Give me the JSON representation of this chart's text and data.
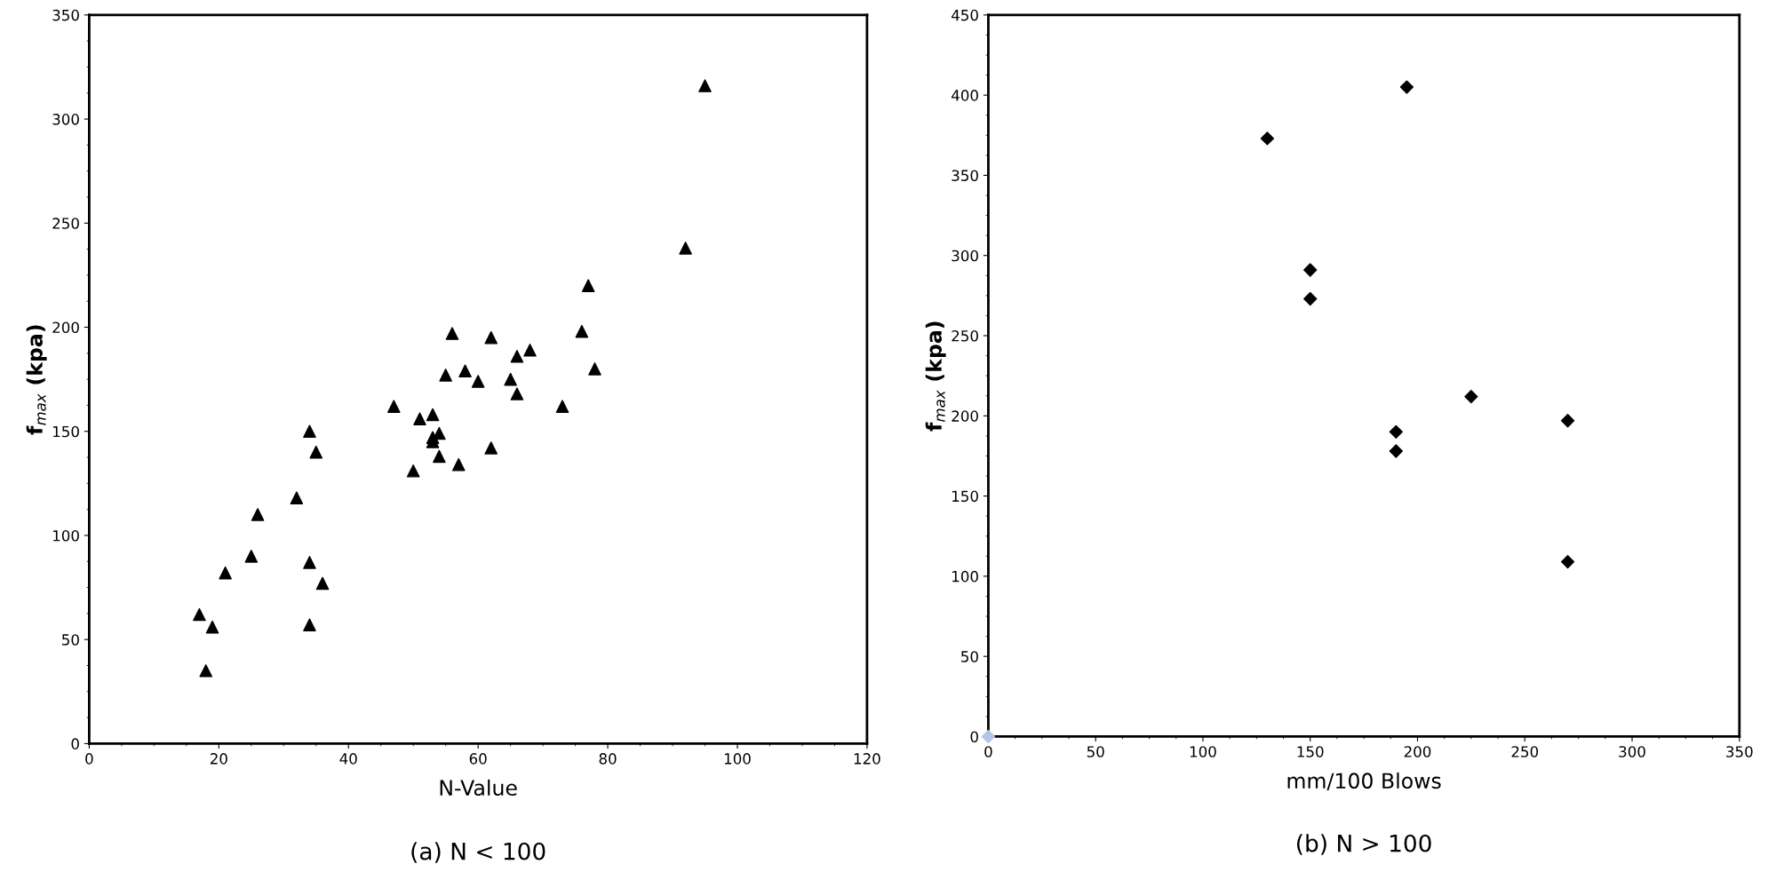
{
  "chart_data": [
    {
      "type": "scatter",
      "title": "(a) N < 100",
      "xlabel": "N-Value",
      "ylabel": "f$_{max}$ (kpa)",
      "marker": "triangle",
      "xlim": [
        0,
        120
      ],
      "xticks": [
        0,
        20,
        40,
        60,
        80,
        100,
        120
      ],
      "ylim": [
        0,
        350
      ],
      "yticks": [
        0,
        50,
        100,
        150,
        200,
        250,
        300,
        350
      ],
      "series": [
        {
          "color": "#000000",
          "x": [
            17,
            18,
            19,
            21,
            25,
            26,
            32,
            34,
            34,
            34,
            35,
            36,
            47,
            50,
            51,
            53,
            53,
            53,
            54,
            54,
            55,
            56,
            57,
            58,
            60,
            62,
            62,
            65,
            66,
            66,
            68,
            73,
            76,
            77,
            78,
            92,
            95
          ],
          "values": [
            62,
            35,
            56,
            82,
            90,
            110,
            118,
            150,
            87,
            57,
            140,
            77,
            162,
            131,
            156,
            158,
            145,
            147,
            149,
            138,
            177,
            197,
            134,
            179,
            174,
            195,
            142,
            175,
            186,
            168,
            189,
            162,
            198,
            220,
            180,
            238,
            316
          ]
        }
      ]
    },
    {
      "type": "scatter",
      "title": "(b) N > 100",
      "xlabel": "mm/100 Blows",
      "ylabel": "f$_{max}$ (kpa)",
      "marker": "diamond",
      "xlim": [
        0,
        350
      ],
      "xticks": [
        0,
        50,
        100,
        150,
        200,
        250,
        300,
        350
      ],
      "ylim": [
        0,
        450
      ],
      "yticks": [
        0,
        50,
        100,
        150,
        200,
        250,
        300,
        350,
        400,
        450
      ],
      "series": [
        {
          "color": "#000000",
          "x": [
            130,
            150,
            150,
            190,
            190,
            195,
            225,
            270,
            270
          ],
          "values": [
            373,
            291,
            273,
            190,
            178,
            405,
            212,
            197,
            109
          ]
        },
        {
          "color": "#b4c6e7",
          "x": [
            0
          ],
          "values": [
            0
          ]
        }
      ]
    }
  ]
}
